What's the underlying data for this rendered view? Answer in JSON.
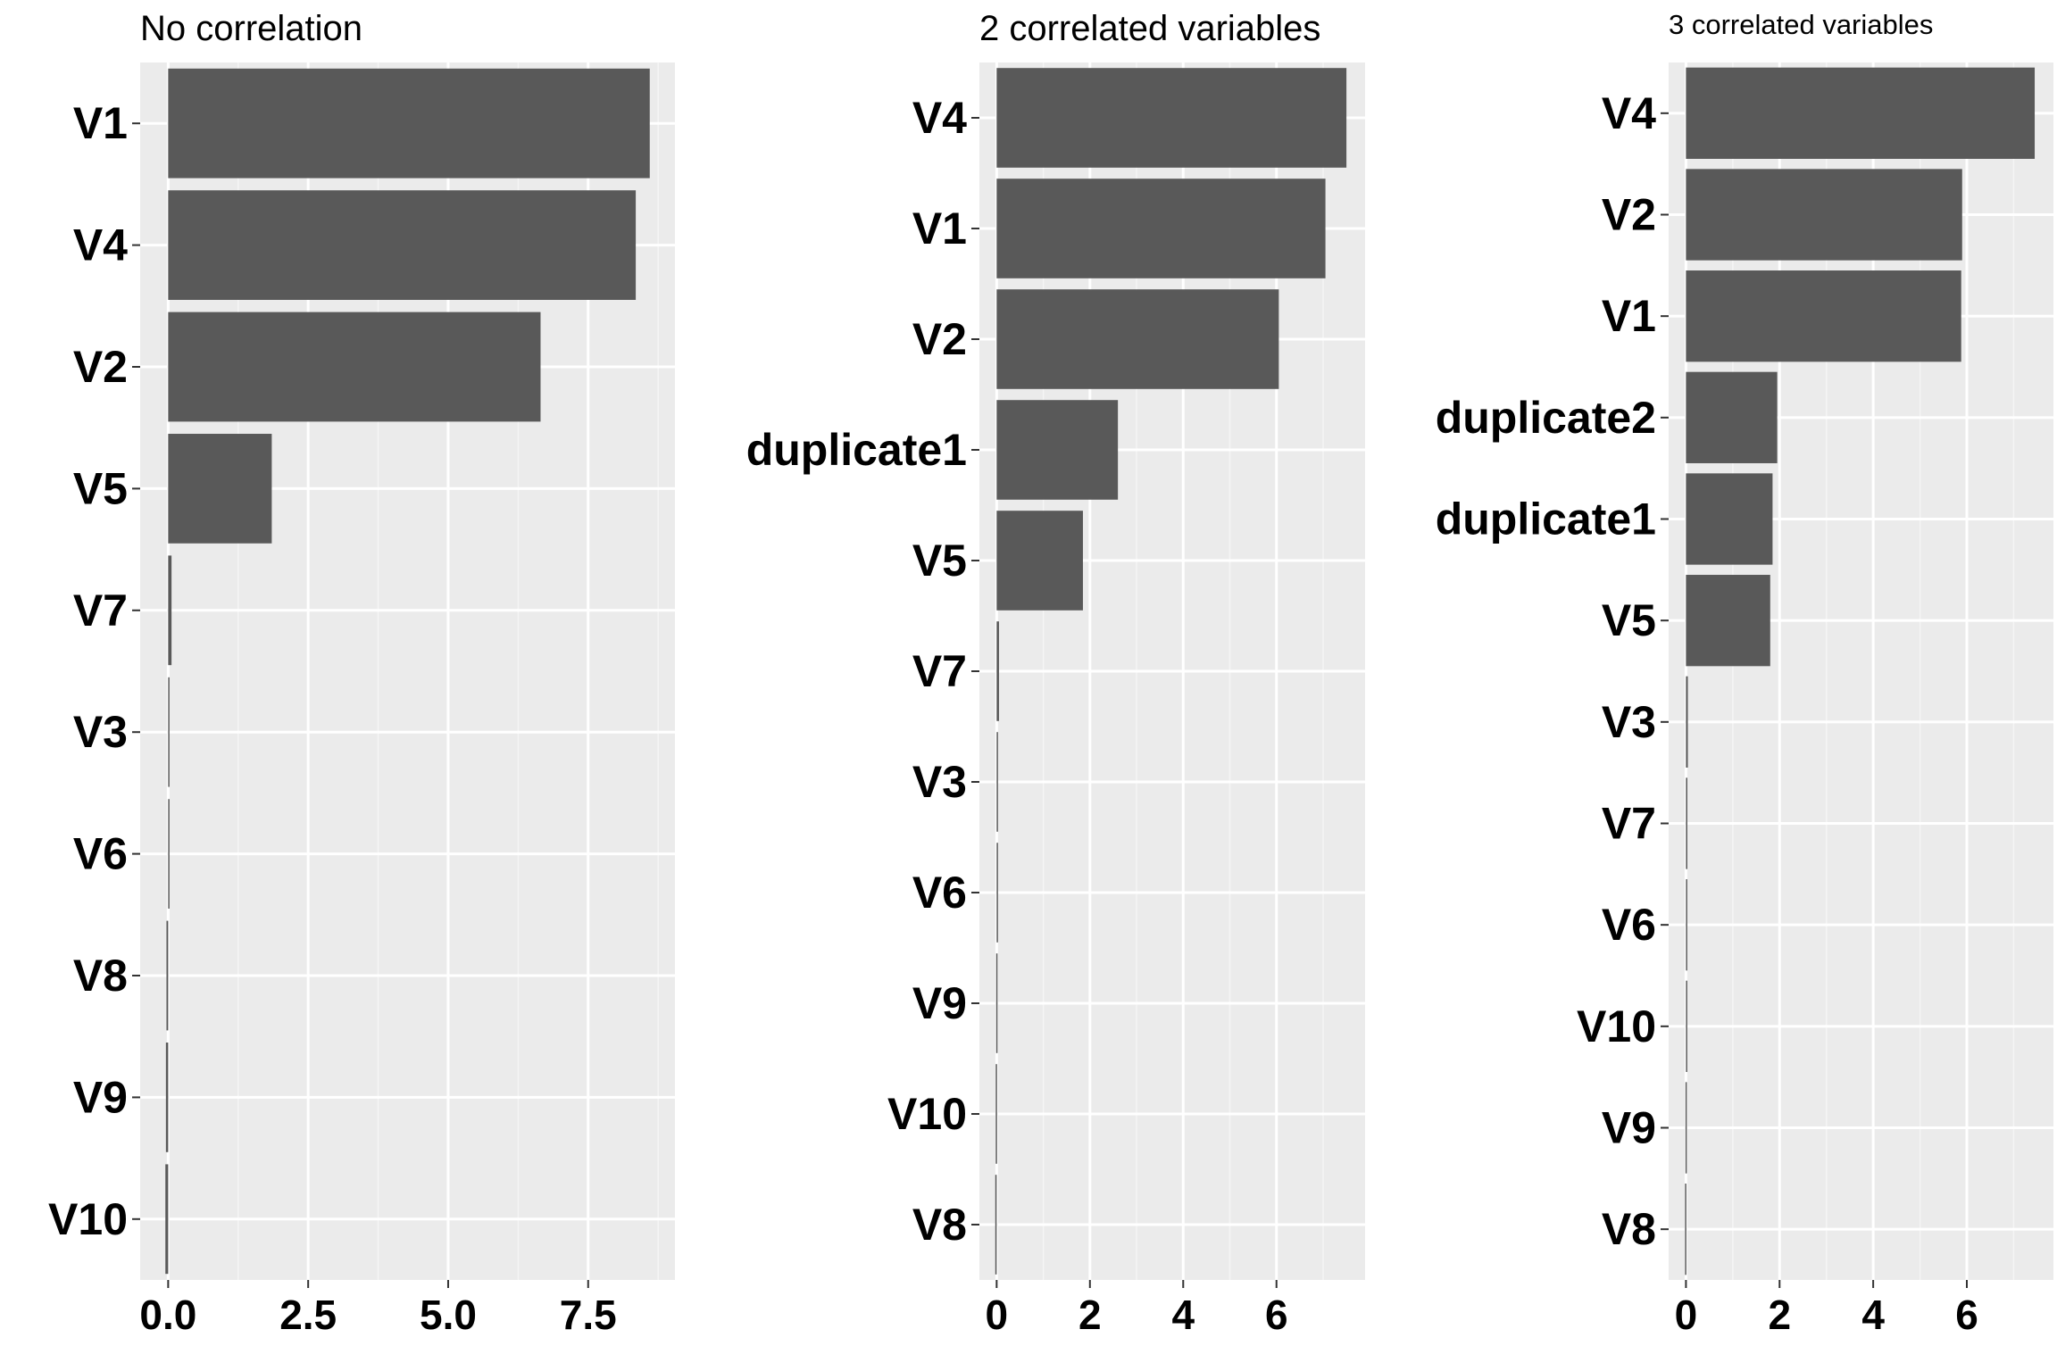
{
  "colors": {
    "panel_background": "#EBEBEB",
    "grid_major": "#FFFFFF",
    "grid_minor": "#F5F5F5",
    "bar": "#595959",
    "axis_tick": "#333333",
    "text": "#000000"
  },
  "chart_data": [
    {
      "type": "bar",
      "orientation": "horizontal",
      "title": "No correlation",
      "categories": [
        "V1",
        "V4",
        "V2",
        "V5",
        "V7",
        "V3",
        "V6",
        "V8",
        "V9",
        "V10"
      ],
      "values": [
        8.6,
        8.35,
        6.65,
        1.85,
        0.06,
        0.02,
        0.0,
        -0.03,
        -0.04,
        -0.05
      ],
      "xlim": [
        -0.5,
        9.05
      ],
      "xticks": [
        0,
        2.5,
        5,
        7.5
      ],
      "xtick_labels": [
        "0.0",
        "2.5",
        "5.0",
        "7.5"
      ],
      "grid": true
    },
    {
      "type": "bar",
      "orientation": "horizontal",
      "title": "2 correlated variables",
      "categories": [
        "V4",
        "V1",
        "V2",
        "duplicate1",
        "V5",
        "V7",
        "V3",
        "V6",
        "V9",
        "V10",
        "V8"
      ],
      "values": [
        7.5,
        7.05,
        6.05,
        2.6,
        1.85,
        0.05,
        0.02,
        0.01,
        -0.01,
        -0.02,
        -0.03
      ],
      "xlim": [
        -0.37,
        7.9
      ],
      "xticks": [
        0,
        2,
        4,
        6
      ],
      "xtick_labels": [
        "0",
        "2",
        "4",
        "6"
      ],
      "grid": true
    },
    {
      "type": "bar",
      "orientation": "horizontal",
      "title": "3 correlated variables",
      "categories": [
        "V4",
        "V2",
        "V1",
        "duplicate2",
        "duplicate1",
        "V5",
        "V3",
        "V7",
        "V6",
        "V10",
        "V9",
        "V8"
      ],
      "values": [
        7.45,
        5.9,
        5.88,
        1.95,
        1.85,
        1.8,
        0.04,
        0.03,
        0.02,
        0.0,
        -0.01,
        -0.02
      ],
      "xlim": [
        -0.37,
        7.85
      ],
      "xticks": [
        0,
        2,
        4,
        6
      ],
      "xtick_labels": [
        "0",
        "2",
        "4",
        "6"
      ],
      "grid": true
    }
  ]
}
